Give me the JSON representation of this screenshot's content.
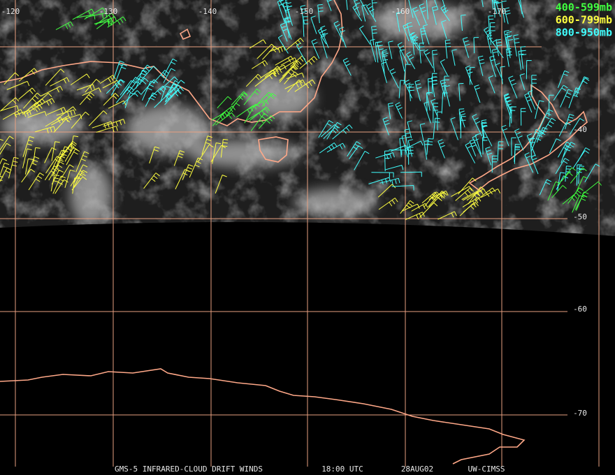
{
  "map": {
    "longitude_labels": [
      "-120",
      "-130",
      "-140",
      "-150",
      "-160",
      "-170"
    ],
    "latitude_labels": [
      "-40",
      "-50",
      "-60",
      "-70"
    ],
    "legend": [
      {
        "label": "400-599mb",
        "color": "#40ff40"
      },
      {
        "label": "600-799mb",
        "color": "#ffff40"
      },
      {
        "label": "800-950mb",
        "color": "#40ffff"
      }
    ],
    "footer": [
      "GMS-5 INFRARED-CLOUD DRIFT WINDS",
      "18:00 UTC",
      "28AUG02",
      "UW-CIMSS"
    ]
  }
}
